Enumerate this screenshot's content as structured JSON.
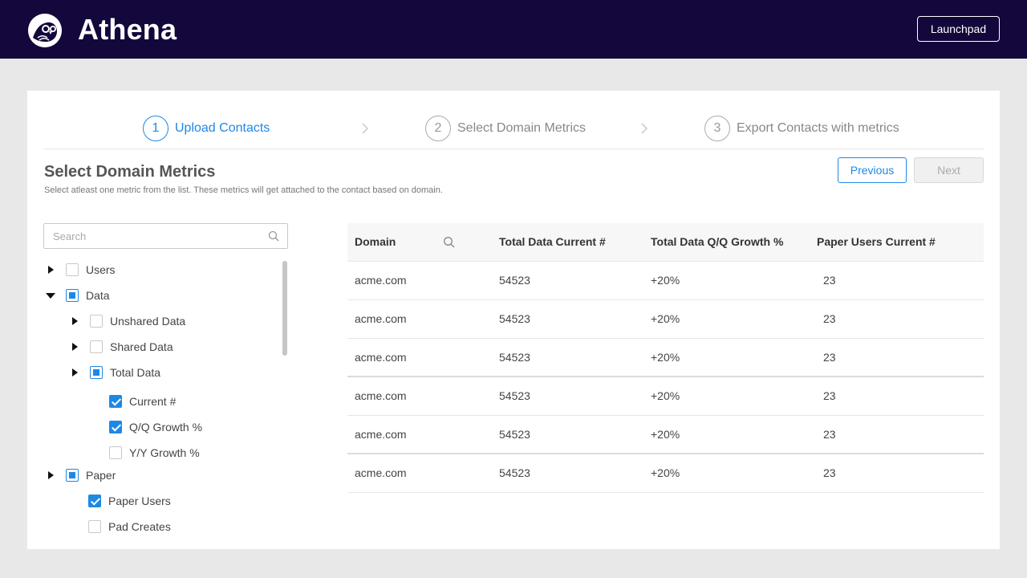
{
  "app": {
    "title": "Athena",
    "launchpad_label": "Launchpad"
  },
  "steps": [
    {
      "number": "1",
      "label": "Upload Contacts",
      "active": true
    },
    {
      "number": "2",
      "label": "Select Domain Metrics",
      "active": false
    },
    {
      "number": "3",
      "label": "Export Contacts with metrics",
      "active": false
    }
  ],
  "page": {
    "title": "Select Domain Metrics",
    "subtitle": "Select atleast one metric from the list. These metrics will get attached to the contact based on domain.",
    "previous_label": "Previous",
    "next_label": "Next"
  },
  "search": {
    "placeholder": "Search"
  },
  "tree": [
    {
      "key": "users",
      "label": "Users",
      "state": "unchecked",
      "expander": "collapsed"
    },
    {
      "key": "data",
      "label": "Data",
      "state": "partial",
      "expander": "expanded"
    },
    {
      "key": "unshared-data",
      "label": "Unshared Data",
      "state": "unchecked",
      "expander": "collapsed"
    },
    {
      "key": "shared-data",
      "label": "Shared Data",
      "state": "unchecked",
      "expander": "collapsed"
    },
    {
      "key": "total-data",
      "label": "Total Data",
      "state": "partial",
      "expander": "collapsed"
    },
    {
      "key": "current",
      "label": "Current #",
      "state": "checked",
      "expander": "none"
    },
    {
      "key": "qq-growth",
      "label": "Q/Q Growth %",
      "state": "checked",
      "expander": "none"
    },
    {
      "key": "yy-growth",
      "label": "Y/Y Growth %",
      "state": "unchecked",
      "expander": "none"
    },
    {
      "key": "paper",
      "label": "Paper",
      "state": "partial",
      "expander": "collapsed"
    },
    {
      "key": "paper-users",
      "label": "Paper Users",
      "state": "checked",
      "expander": "none"
    },
    {
      "key": "pad-creates",
      "label": "Pad Creates",
      "state": "unchecked",
      "expander": "none"
    }
  ],
  "table": {
    "columns": [
      "Domain",
      "Total Data Current #",
      "Total Data Q/Q Growth %",
      "Paper Users Current #"
    ],
    "rows": [
      [
        "acme.com",
        "54523",
        "+20%",
        "23"
      ],
      [
        "acme.com",
        "54523",
        "+20%",
        "23"
      ],
      [
        "acme.com",
        "54523",
        "+20%",
        "23"
      ],
      [
        "acme.com",
        "54523",
        "+20%",
        "23"
      ],
      [
        "acme.com",
        "54523",
        "+20%",
        "23"
      ],
      [
        "acme.com",
        "54523",
        "+20%",
        "23"
      ]
    ]
  },
  "colors": {
    "header_bg": "#14073b",
    "accent": "#1e88e5"
  },
  "icons": [
    "owl-logo-icon",
    "chevron-right-icon",
    "search-icon",
    "caret-right-icon",
    "caret-down-icon",
    "checkbox-icon"
  ]
}
